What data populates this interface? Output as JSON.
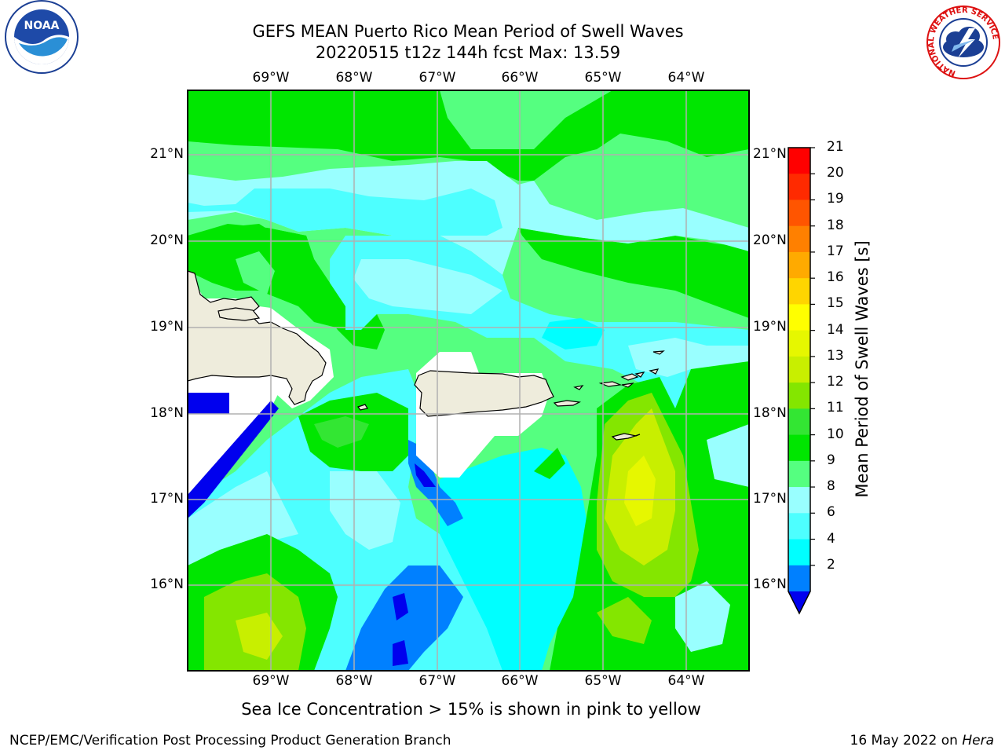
{
  "title_line1": "GEFS MEAN Puerto Rico Mean Period of Swell Waves",
  "title_line2": "20220515 t12z 144h fcst   Max: 13.59",
  "map": {
    "lon_labels": [
      "69°W",
      "68°W",
      "67°W",
      "66°W",
      "65°W",
      "64°W"
    ],
    "lat_labels": [
      "21°N",
      "20°N",
      "19°N",
      "18°N",
      "17°N",
      "16°N"
    ],
    "grid": true
  },
  "colorbar": {
    "label": "Mean Period of Swell Waves [s]",
    "ticks": [
      "21",
      "20",
      "19",
      "18",
      "17",
      "16",
      "15",
      "14",
      "13",
      "12",
      "11",
      "10",
      "9",
      "8",
      "6",
      "4",
      "2"
    ],
    "colors": [
      "#ff0000",
      "#ff2a00",
      "#ff5500",
      "#ff8000",
      "#ffaa00",
      "#ffd500",
      "#ffff00",
      "#e6f700",
      "#c8ef00",
      "#84e600",
      "#33e633",
      "#00e600",
      "#55ff80",
      "#99ffff",
      "#4dffff",
      "#00ffff",
      "#0080ff"
    ],
    "extend_color": "#0000ee"
  },
  "land_color": "#eeecdc",
  "note": "Sea Ice Concentration > 15% is shown in pink to yellow",
  "footer_left": "NCEP/EMC/Verification Post Processing Product Generation Branch",
  "footer_right_text": "16 May 2022 on ",
  "footer_right_host": "Hera",
  "logos": {
    "noaa_text": "NOAA",
    "nws_ring_text": "NATIONAL WEATHER SERVICE"
  }
}
